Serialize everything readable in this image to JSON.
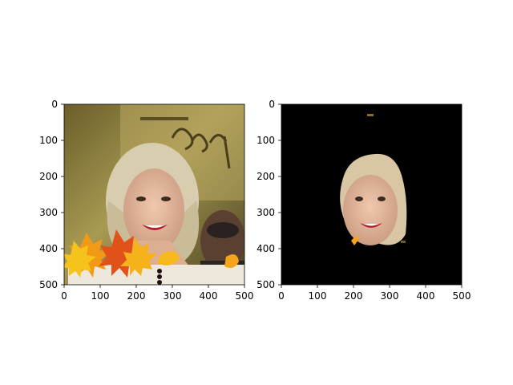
{
  "figure": {
    "panels": [
      {
        "id": "left",
        "content": "photo of smiling blonde woman with autumn maple leaf stickers",
        "x_ticks": [
          "0",
          "100",
          "200",
          "300",
          "400",
          "500"
        ],
        "y_ticks": [
          "0",
          "100",
          "200",
          "300",
          "400",
          "500"
        ]
      },
      {
        "id": "right",
        "content": "segmentation mask output showing extracted face region on black background",
        "x_ticks": [
          "0",
          "100",
          "200",
          "300",
          "400",
          "500"
        ],
        "y_ticks": [
          "0",
          "100",
          "200",
          "300",
          "400",
          "500"
        ]
      }
    ],
    "colors": {
      "background": "#ffffff",
      "mask_background": "#000000",
      "leaf_orange": "#f29a16",
      "leaf_red": "#e0521a",
      "leaf_yellow": "#f6c21c",
      "backdrop": "#8a7a3a",
      "skin": "#e2b69c",
      "hair": "#d9cdb0"
    }
  }
}
